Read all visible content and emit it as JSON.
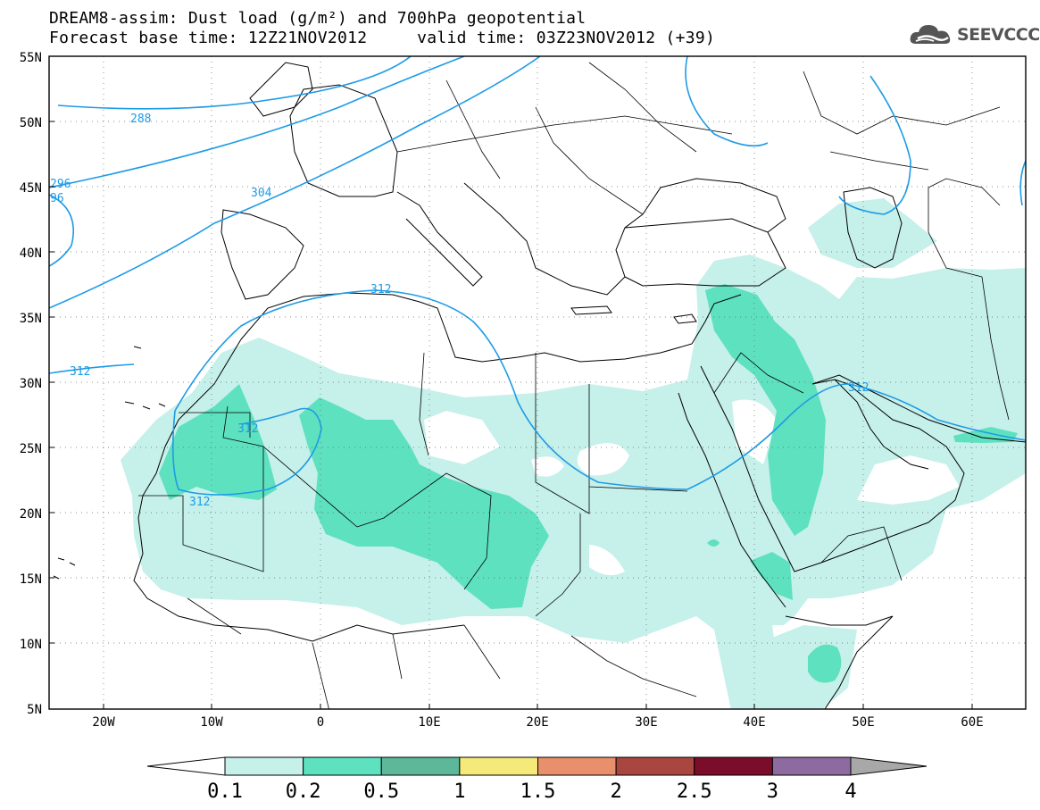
{
  "header": {
    "title_line1": "DREAM8-assim: Dust load (g/m²) and 700hPa geopotential",
    "title_line2": "Forecast base time: 12Z21NOV2012     valid time: 03Z23NOV2012 (+39)"
  },
  "logo": {
    "text": "SEEVCCC",
    "icon": "cloud-logo-icon"
  },
  "map": {
    "lat_labels": [
      "55N",
      "50N",
      "45N",
      "40N",
      "35N",
      "30N",
      "25N",
      "20N",
      "15N",
      "10N",
      "5N"
    ],
    "lon_labels": [
      "20W",
      "10W",
      "0",
      "10E",
      "20E",
      "30E",
      "40E",
      "50E",
      "60E"
    ],
    "contour_labels": [
      "288",
      "296",
      "96",
      "304",
      "312",
      "312",
      "312",
      "312",
      "312"
    ],
    "colors": {
      "dust_0_1": "#c6f0ea",
      "dust_0_2": "#5ee1bf",
      "contour": "#1e9be6",
      "coast": "#000000"
    }
  },
  "colorbar": {
    "ticks": [
      "0.1",
      "0.2",
      "0.5",
      "1",
      "1.5",
      "2",
      "2.5",
      "3",
      "4"
    ],
    "colors": [
      "#c6f0ea",
      "#5ee1bf",
      "#5cb899",
      "#f5e97a",
      "#e8906b",
      "#a8463f",
      "#7a0d2a",
      "#8d6aa0",
      "#a8a8a8"
    ],
    "under_color": "#ffffff",
    "over_color": "#a8a8a8"
  }
}
